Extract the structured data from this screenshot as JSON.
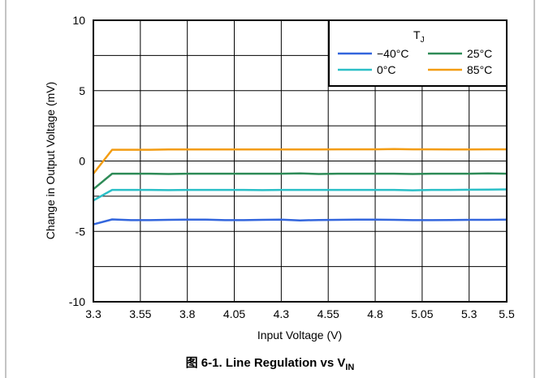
{
  "chart_data": {
    "type": "line",
    "xlabel": "Input Voltage (V)",
    "ylabel": "Change in Output Voltage (mV)",
    "xlim": [
      3.3,
      5.5
    ],
    "ylim": [
      -10,
      10
    ],
    "xticks": [
      "3.3",
      "3.55",
      "3.8",
      "4.05",
      "4.3",
      "4.55",
      "4.8",
      "5.05",
      "5.3",
      "5.5"
    ],
    "yticks": [
      "10",
      "5",
      "0",
      "-5",
      "-10"
    ],
    "grid": true,
    "legend_title": "T",
    "legend_title_sub": "J",
    "legend_position": "top-right",
    "x": [
      3.3,
      3.4,
      3.5,
      3.6,
      3.7,
      3.8,
      3.9,
      4.0,
      4.1,
      4.2,
      4.3,
      4.4,
      4.5,
      4.6,
      4.7,
      4.8,
      4.9,
      5.0,
      5.1,
      5.2,
      5.3,
      5.4,
      5.5
    ],
    "series": [
      {
        "name": "−40°C",
        "color": "#3366dd",
        "values": [
          -4.5,
          -4.15,
          -4.2,
          -4.2,
          -4.18,
          -4.17,
          -4.17,
          -4.2,
          -4.2,
          -4.18,
          -4.17,
          -4.22,
          -4.19,
          -4.18,
          -4.17,
          -4.17,
          -4.18,
          -4.2,
          -4.2,
          -4.19,
          -4.18,
          -4.18,
          -4.17
        ]
      },
      {
        "name": "25°C",
        "color": "#2e8b57",
        "values": [
          -2.0,
          -0.9,
          -0.9,
          -0.9,
          -0.92,
          -0.9,
          -0.9,
          -0.9,
          -0.9,
          -0.9,
          -0.9,
          -0.88,
          -0.92,
          -0.9,
          -0.9,
          -0.9,
          -0.9,
          -0.92,
          -0.9,
          -0.9,
          -0.9,
          -0.88,
          -0.9
        ]
      },
      {
        "name": "0°C",
        "color": "#2bbfc7",
        "values": [
          -2.8,
          -2.05,
          -2.05,
          -2.05,
          -2.07,
          -2.05,
          -2.05,
          -2.05,
          -2.05,
          -2.07,
          -2.05,
          -2.05,
          -2.05,
          -2.05,
          -2.05,
          -2.05,
          -2.05,
          -2.08,
          -2.05,
          -2.05,
          -2.04,
          -2.03,
          -2.02
        ]
      },
      {
        "name": "85°C",
        "color": "#f39c12",
        "values": [
          -0.9,
          0.8,
          0.8,
          0.8,
          0.82,
          0.82,
          0.82,
          0.82,
          0.82,
          0.82,
          0.82,
          0.82,
          0.82,
          0.83,
          0.83,
          0.83,
          0.85,
          0.83,
          0.83,
          0.82,
          0.82,
          0.83,
          0.83
        ]
      }
    ]
  },
  "caption": {
    "prefix": "图 6-1. Line Regulation vs V",
    "sub": "IN"
  }
}
